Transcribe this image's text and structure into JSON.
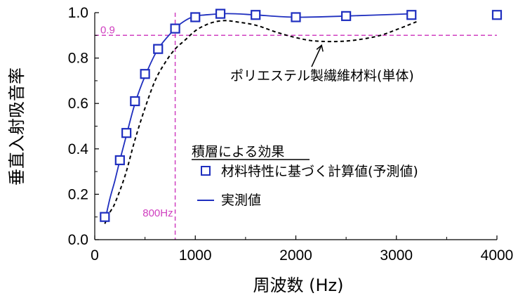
{
  "chart_data": {
    "type": "line",
    "xlabel": "周波数 (Hz)",
    "ylabel": "垂直入射吸音率",
    "xlim": [
      0,
      4000
    ],
    "ylim": [
      0.0,
      1.0
    ],
    "x_ticks": [
      0,
      1000,
      2000,
      3000,
      4000
    ],
    "x_tick_labels": [
      "0",
      "1000",
      "2000",
      "3000",
      "4000"
    ],
    "y_ticks": [
      0.0,
      0.2,
      0.4,
      0.6,
      0.8,
      1.0
    ],
    "y_tick_labels": [
      "0.0",
      "0.2",
      "0.4",
      "0.6",
      "0.8",
      "1.0"
    ],
    "grid": false,
    "legend_title": "積層による効果",
    "legend_position": "center-right",
    "reference_lines": [
      {
        "axis": "y",
        "value": 0.9,
        "label": "0.9",
        "color": "#d040c0"
      },
      {
        "axis": "x",
        "value": 800,
        "label": "800Hz",
        "color": "#d040c0"
      }
    ],
    "annotation": {
      "text": "ポリエステル製繊維材料(単体)",
      "target": [
        2200,
        0.875
      ]
    },
    "series": [
      {
        "name": "材料特性に基づく計算値(予測値)",
        "style": "square-markers",
        "color": "#1f2fbf",
        "x": [
          100,
          250,
          315,
          400,
          500,
          630,
          800,
          1000,
          1250,
          1600,
          2000,
          2500,
          3150,
          4000
        ],
        "values": [
          0.1,
          0.35,
          0.47,
          0.61,
          0.73,
          0.84,
          0.93,
          0.98,
          0.995,
          0.99,
          0.98,
          0.985,
          0.99,
          0.99
        ]
      },
      {
        "name": "実測値",
        "style": "solid",
        "color": "#1f2fbf",
        "x": [
          100,
          150,
          200,
          250,
          315,
          400,
          500,
          630,
          800,
          900,
          1000,
          1100,
          1250,
          1400,
          1600,
          2000,
          2500,
          3150
        ],
        "values": [
          0.08,
          0.18,
          0.26,
          0.35,
          0.46,
          0.6,
          0.72,
          0.84,
          0.93,
          0.965,
          0.985,
          0.99,
          0.995,
          0.995,
          0.99,
          0.98,
          0.985,
          0.995
        ]
      },
      {
        "style": "dashed",
        "color": "#000000",
        "x": [
          100,
          150,
          200,
          300,
          400,
          500,
          600,
          700,
          800,
          900,
          1000,
          1100,
          1200,
          1300,
          1400,
          1600,
          1800,
          2000,
          2200,
          2500,
          2800,
          3000,
          3200
        ],
        "values": [
          0.07,
          0.12,
          0.16,
          0.28,
          0.44,
          0.58,
          0.7,
          0.78,
          0.84,
          0.88,
          0.92,
          0.945,
          0.96,
          0.965,
          0.96,
          0.945,
          0.915,
          0.89,
          0.875,
          0.875,
          0.895,
          0.925,
          0.96
        ]
      }
    ]
  }
}
